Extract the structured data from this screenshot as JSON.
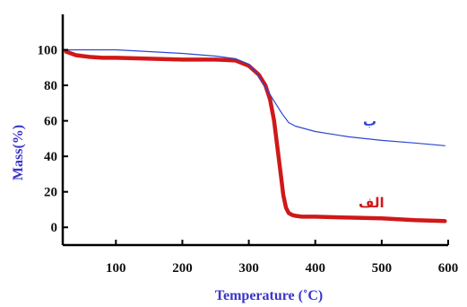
{
  "chart_data": {
    "type": "line",
    "xlabel": "Temperature (˚C)",
    "ylabel": "Mass(%)",
    "xlim": [
      20,
      600
    ],
    "ylim": [
      -10,
      120
    ],
    "x_ticks": [
      100,
      200,
      300,
      400,
      500,
      600
    ],
    "y_ticks": [
      0,
      20,
      40,
      60,
      80,
      100
    ],
    "grid": false,
    "series": [
      {
        "name": "الف",
        "color": "#d01818",
        "x": [
          25,
          40,
          60,
          80,
          100,
          150,
          200,
          250,
          280,
          300,
          315,
          325,
          332,
          338,
          343,
          348,
          352,
          356,
          360,
          365,
          370,
          380,
          400,
          450,
          500,
          550,
          595
        ],
        "y": [
          99,
          97,
          96,
          95.5,
          95.5,
          95,
          94.5,
          94.5,
          94,
          91,
          86,
          80,
          72,
          60,
          45,
          30,
          18,
          11,
          8,
          7,
          6.5,
          6,
          6,
          5.5,
          5,
          4,
          3.5
        ]
      },
      {
        "name": "ب",
        "color": "#2d47d0",
        "x": [
          25,
          50,
          100,
          150,
          200,
          250,
          280,
          300,
          310,
          320,
          330,
          340,
          350,
          360,
          370,
          400,
          450,
          500,
          550,
          595
        ],
        "y": [
          100,
          100,
          100,
          99,
          98,
          96.5,
          95,
          92,
          88,
          82,
          76,
          70,
          64,
          59,
          57,
          54,
          51,
          49,
          47.5,
          46
        ]
      }
    ]
  }
}
